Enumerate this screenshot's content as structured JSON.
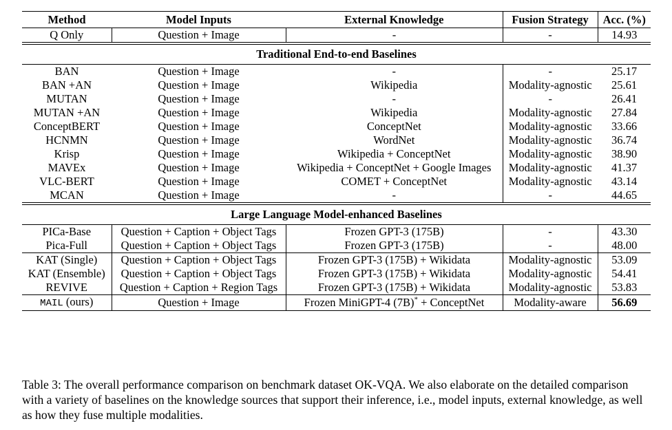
{
  "table": {
    "header": [
      "Method",
      "Model Inputs",
      "External Knowledge",
      "Fusion Strategy",
      "Acc. (%)"
    ],
    "sections": [
      {
        "blocks": [
          [
            [
              "Q Only",
              "Question + Image",
              "-",
              "-",
              "14.93"
            ]
          ]
        ]
      },
      {
        "title": "Traditional End-to-end Baselines",
        "blocks": [
          [
            [
              "BAN",
              "Question + Image",
              "-",
              "-",
              "25.17"
            ],
            [
              "BAN +AN",
              "Question + Image",
              "Wikipedia",
              "Modality-agnostic",
              "25.61"
            ],
            [
              "MUTAN",
              "Question + Image",
              "-",
              "-",
              "26.41"
            ],
            [
              "MUTAN +AN",
              "Question + Image",
              "Wikipedia",
              "Modality-agnostic",
              "27.84"
            ],
            [
              "ConceptBERT",
              "Question + Image",
              "ConceptNet",
              "Modality-agnostic",
              "33.66"
            ],
            [
              "HCNMN",
              "Question + Image",
              "WordNet",
              "Modality-agnostic",
              "36.74"
            ],
            [
              "Krisp",
              "Question + Image",
              "Wikipedia + ConceptNet",
              "Modality-agnostic",
              "38.90"
            ],
            [
              "MAVEx",
              "Question + Image",
              "Wikipedia + ConceptNet + Google Images",
              "Modality-agnostic",
              "41.37"
            ],
            [
              "VLC-BERT",
              "Question + Image",
              "COMET + ConceptNet",
              "Modality-agnostic",
              "43.14"
            ],
            [
              "MCAN",
              "Question + Image",
              "-",
              "-",
              "44.65"
            ]
          ]
        ]
      },
      {
        "title": "Large Language Model-enhanced Baselines",
        "blocks": [
          [
            [
              "PICa-Base",
              "Question + Caption + Object Tags",
              "Frozen GPT-3 (175B)",
              "-",
              "43.30"
            ],
            [
              "Pica-Full",
              "Question + Caption + Object Tags",
              "Frozen GPT-3 (175B)",
              "-",
              "48.00"
            ]
          ],
          [
            [
              "KAT (Single)",
              "Question + Caption + Object Tags",
              "Frozen GPT-3 (175B) + Wikidata",
              "Modality-agnostic",
              "53.09"
            ],
            [
              "KAT (Ensemble)",
              "Question + Caption + Object Tags",
              "Frozen GPT-3 (175B) + Wikidata",
              "Modality-agnostic",
              "54.41"
            ],
            [
              "REVIVE",
              "Question + Caption + Region Tags",
              "Frozen GPT-3 (175B) + Wikidata",
              "Modality-agnostic",
              "53.83"
            ]
          ]
        ]
      },
      {
        "blocks": [
          [
            [
              [
                {
                  "text": "MAIL",
                  "style": "mono"
                },
                {
                  "text": " (ours)",
                  "style": "plain"
                }
              ],
              "Question + Image",
              [
                {
                  "text": "Frozen MiniGPT-4 (7B)",
                  "style": "plain"
                },
                {
                  "text": "*",
                  "style": "sup"
                },
                {
                  "text": " + ConceptNet",
                  "style": "plain"
                }
              ],
              "Modality-aware",
              [
                {
                  "text": "56.69",
                  "style": "bold"
                }
              ]
            ]
          ]
        ]
      }
    ]
  },
  "caption": "Table 3: The overall performance comparison on benchmark dataset OK-VQA. We also elaborate on the detailed comparison with a variety of baselines on the knowledge sources that support their inference, i.e., model inputs, external knowledge, as well as how they fuse multiple modalities."
}
